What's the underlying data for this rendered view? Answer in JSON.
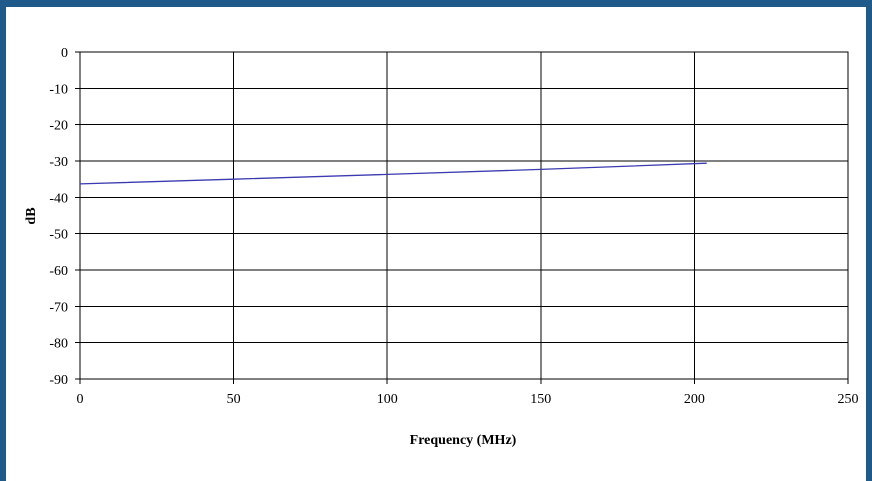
{
  "chart_data": {
    "type": "line",
    "title": "",
    "xlabel": "Frequency (MHz)",
    "ylabel": "dB",
    "xlim": [
      0,
      250
    ],
    "ylim": [
      -90,
      0
    ],
    "xticks": [
      0,
      50,
      100,
      150,
      200,
      250
    ],
    "yticks": [
      0,
      -10,
      -20,
      -30,
      -40,
      -50,
      -60,
      -70,
      -80,
      -90
    ],
    "grid": true,
    "legend": "none",
    "series": [
      {
        "color": "#3b3bb0",
        "x": [
          0,
          50,
          100,
          150,
          204
        ],
        "y": [
          -36.3,
          -35.0,
          -33.7,
          -32.3,
          -30.6
        ]
      }
    ]
  }
}
